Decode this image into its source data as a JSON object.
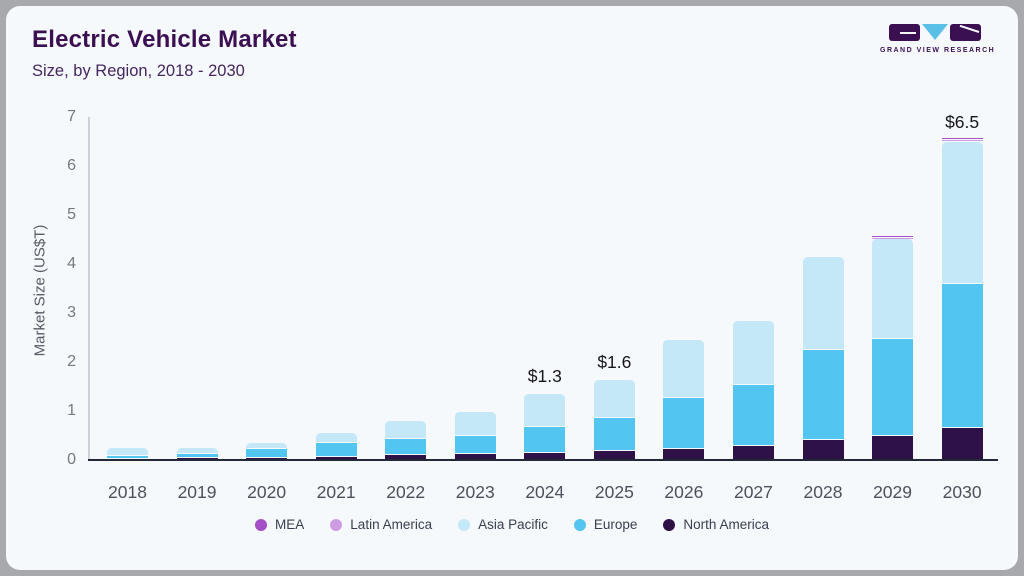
{
  "header": {
    "title": "Electric Vehicle Market",
    "subtitle": "Size, by Region, 2018 - 2030"
  },
  "logo": {
    "text": "GRAND VIEW RESEARCH",
    "brand_dark": "#3a1053",
    "brand_blue": "#5bc0e8"
  },
  "chart_data": {
    "type": "bar",
    "stacked": true,
    "title": "Electric Vehicle Market Size, by Region, 2018 - 2030",
    "xlabel": "",
    "ylabel": "Market Size (US$T)",
    "ylim": [
      0,
      7
    ],
    "yticks": [
      0,
      1,
      2,
      3,
      4,
      5,
      6,
      7
    ],
    "grid": false,
    "categories": [
      "2018",
      "2019",
      "2020",
      "2021",
      "2022",
      "2023",
      "2024",
      "2025",
      "2026",
      "2027",
      "2028",
      "2029",
      "2030"
    ],
    "series": [
      {
        "name": "North America",
        "color": "#2e1147",
        "values": [
          0.03,
          0.04,
          0.05,
          0.07,
          0.1,
          0.12,
          0.14,
          0.19,
          0.23,
          0.29,
          0.4,
          0.48,
          0.65
        ]
      },
      {
        "name": "Europe",
        "color": "#52c5f0",
        "values": [
          0.04,
          0.06,
          0.15,
          0.26,
          0.31,
          0.35,
          0.52,
          0.64,
          1.02,
          1.23,
          1.82,
          1.97,
          2.92
        ]
      },
      {
        "name": "Asia Pacific",
        "color": "#c5e8f8",
        "values": [
          0.13,
          0.1,
          0.1,
          0.19,
          0.35,
          0.46,
          0.64,
          0.77,
          1.15,
          1.28,
          1.88,
          2.01,
          2.88
        ]
      },
      {
        "name": "Latin America",
        "color": "#cf9ce4",
        "values": [
          0,
          0,
          0,
          0,
          0,
          0,
          0,
          0,
          0,
          0,
          0,
          0.02,
          0.03
        ]
      },
      {
        "name": "MEA",
        "color": "#a451c9",
        "values": [
          0,
          0,
          0,
          0,
          0,
          0,
          0,
          0,
          0,
          0,
          0,
          0.02,
          0.02
        ]
      }
    ],
    "totals": [
      0.2,
      0.2,
      0.3,
      0.52,
      0.76,
      0.93,
      1.3,
      1.6,
      2.4,
      2.8,
      4.1,
      4.5,
      6.5
    ],
    "annotations": [
      {
        "category": "2024",
        "label": "$1.3"
      },
      {
        "category": "2025",
        "label": "$1.6"
      },
      {
        "category": "2030",
        "label": "$6.5"
      }
    ],
    "legend_position": "bottom"
  },
  "legend": {
    "items": [
      {
        "label": "MEA",
        "color": "#a451c9"
      },
      {
        "label": "Latin America",
        "color": "#cf9ce4"
      },
      {
        "label": "Asia Pacific",
        "color": "#c5e8f8"
      },
      {
        "label": "Europe",
        "color": "#52c5f0"
      },
      {
        "label": "North America",
        "color": "#2e1147"
      }
    ]
  }
}
